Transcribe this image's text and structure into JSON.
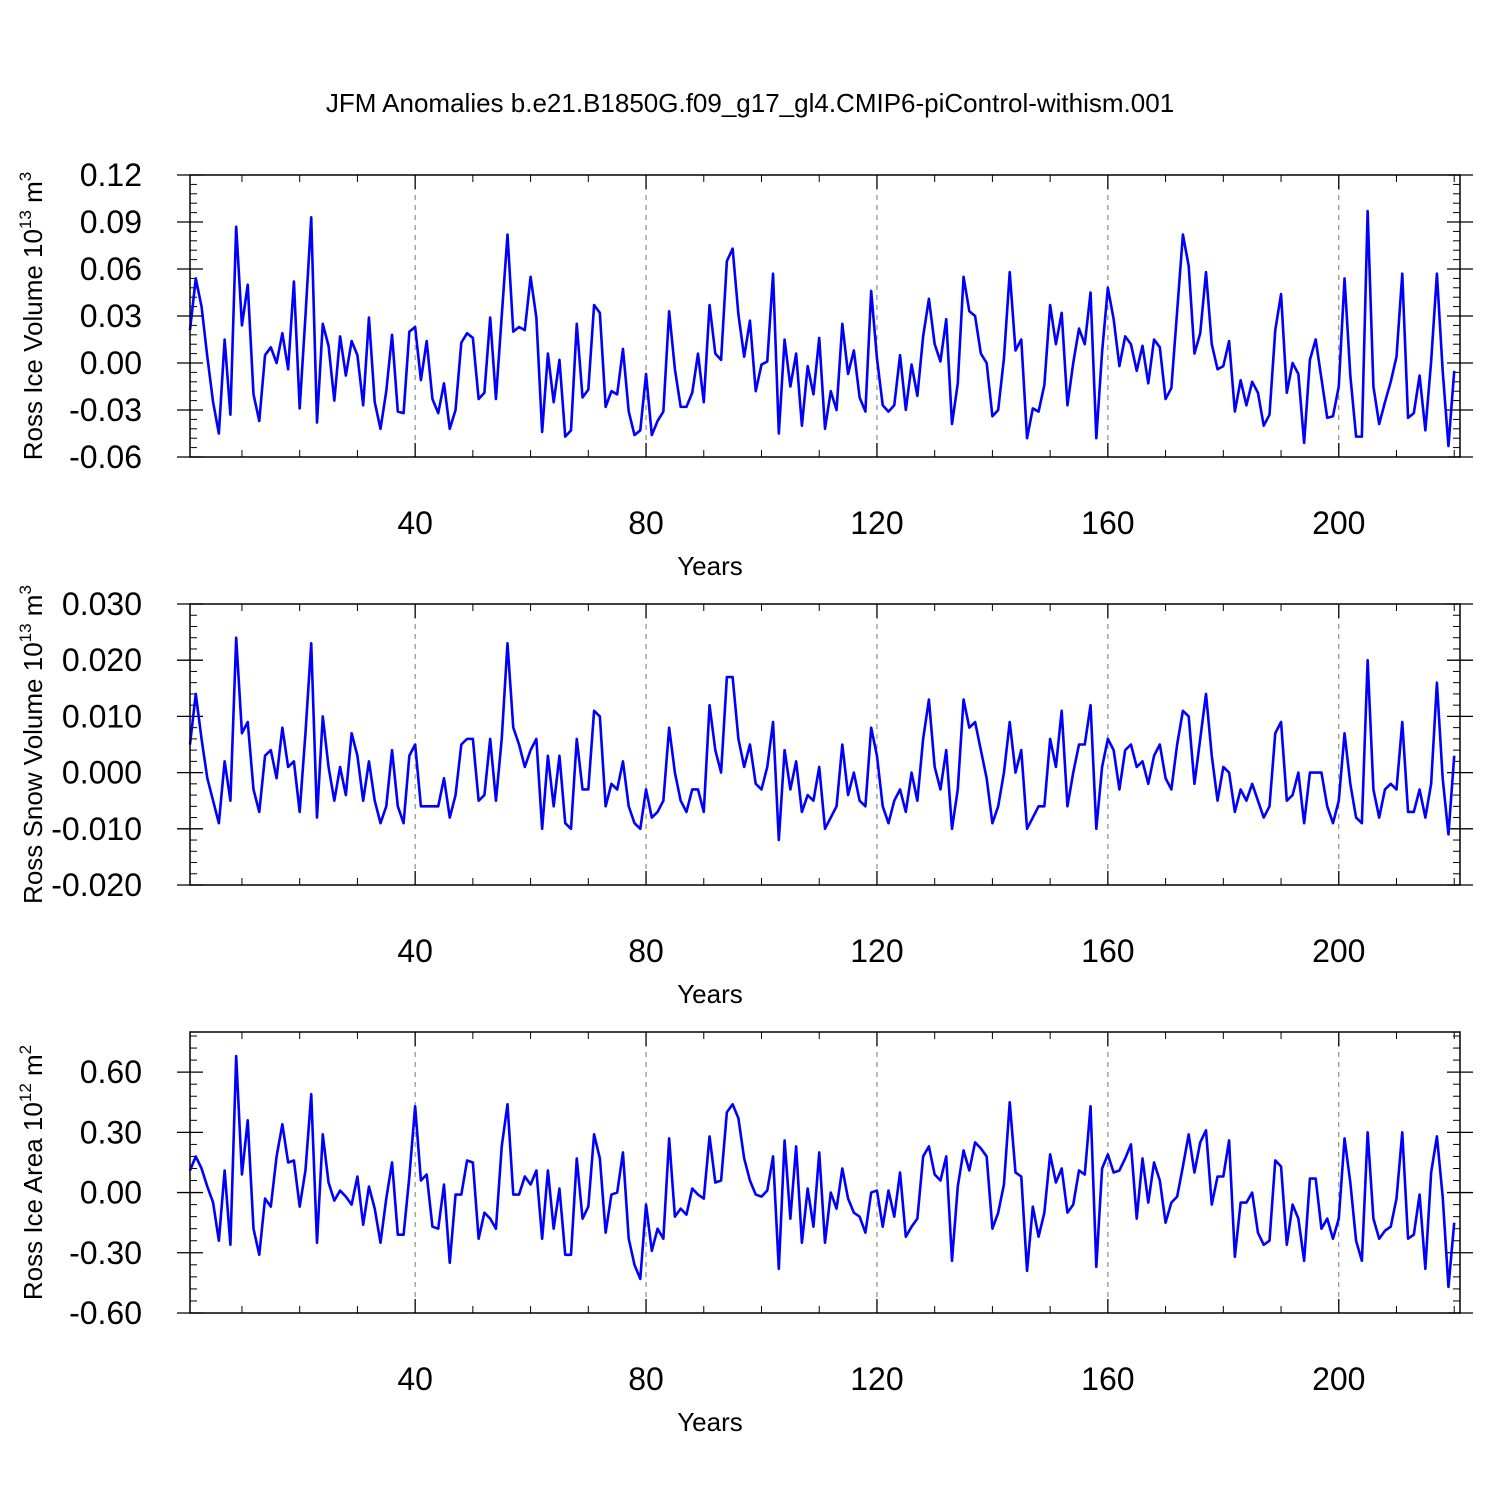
{
  "title": "JFM Anomalies b.e21.B1850G.f09_g17_gl4.CMIP6-piControl-withism.001",
  "line_color": "#0000ff",
  "chart_data": [
    {
      "type": "line",
      "ylabel": "Ross Ice Volume 10",
      "ylabel_sup": "13",
      "ylabel_unit": "m",
      "ylabel_unit_sup": "3",
      "xlabel": "Years",
      "xlim": [
        1,
        221
      ],
      "ylim": [
        -0.06,
        0.12
      ],
      "x_ticks": [
        40,
        80,
        120,
        160,
        200
      ],
      "x_tick_labels": [
        "40",
        "80",
        "120",
        "160",
        "200"
      ],
      "y_ticks": [
        -0.06,
        -0.03,
        0.0,
        0.03,
        0.06,
        0.09,
        0.12
      ],
      "y_tick_labels": [
        "-0.06",
        "-0.03",
        "0.00",
        "0.03",
        "0.06",
        "0.09",
        "0.12"
      ],
      "grid": "dashed vertical at x ticks",
      "series": [
        {
          "values": [
            0.021,
            0.054,
            0.036,
            0.004,
            -0.025,
            -0.045,
            0.015,
            -0.033,
            0.087,
            0.024,
            0.05,
            -0.02,
            -0.037,
            0.005,
            0.01,
            0.0,
            0.019,
            -0.004,
            0.052,
            -0.029,
            0.03,
            0.093,
            -0.038,
            0.025,
            0.011,
            -0.024,
            0.017,
            -0.008,
            0.014,
            0.005,
            -0.027,
            0.029,
            -0.025,
            -0.042,
            -0.018,
            0.018,
            -0.031,
            -0.032,
            0.02,
            0.023,
            -0.011,
            0.014,
            -0.023,
            -0.032,
            -0.013,
            -0.042,
            -0.03,
            0.013,
            0.019,
            0.016,
            -0.023,
            -0.019,
            0.029,
            -0.023,
            0.03,
            0.082,
            0.02,
            0.023,
            0.021,
            0.055,
            0.029,
            -0.044,
            0.006,
            -0.025,
            0.002,
            -0.047,
            -0.043,
            0.025,
            -0.022,
            -0.017,
            0.037,
            0.032,
            -0.028,
            -0.018,
            -0.02,
            0.009,
            -0.031,
            -0.046,
            -0.043,
            -0.007,
            -0.046,
            -0.037,
            -0.031,
            0.033,
            -0.004,
            -0.028,
            -0.028,
            -0.019,
            0.006,
            -0.025,
            0.037,
            0.006,
            0.002,
            0.065,
            0.073,
            0.031,
            0.004,
            0.027,
            -0.018,
            -0.001,
            0.001,
            0.057,
            -0.045,
            0.015,
            -0.015,
            0.006,
            -0.04,
            -0.002,
            -0.02,
            0.016,
            -0.042,
            -0.018,
            -0.03,
            0.025,
            -0.007,
            0.008,
            -0.022,
            -0.031,
            0.046,
            0.003,
            -0.027,
            -0.031,
            -0.027,
            0.005,
            -0.03,
            -0.001,
            -0.021,
            0.017,
            0.041,
            0.012,
            0.001,
            0.028,
            -0.039,
            -0.013,
            0.055,
            0.033,
            0.03,
            0.006,
            0.0,
            -0.034,
            -0.03,
            0.003,
            0.058,
            0.008,
            0.015,
            -0.048,
            -0.029,
            -0.031,
            -0.014,
            0.037,
            0.012,
            0.032,
            -0.027,
            0.0,
            0.022,
            0.012,
            0.045,
            -0.048,
            0.007,
            0.048,
            0.028,
            -0.002,
            0.017,
            0.012,
            -0.005,
            0.011,
            -0.013,
            0.015,
            0.01,
            -0.023,
            -0.016,
            0.033,
            0.082,
            0.062,
            0.006,
            0.019,
            0.058,
            0.012,
            -0.004,
            -0.002,
            0.014,
            -0.031,
            -0.011,
            -0.027,
            -0.012,
            -0.019,
            -0.04,
            -0.033,
            0.021,
            0.044,
            -0.019,
            0.0,
            -0.007,
            -0.051,
            0.002,
            0.015,
            -0.01,
            -0.035,
            -0.034,
            -0.015,
            0.054,
            -0.008,
            -0.047,
            -0.047,
            0.097,
            -0.015,
            -0.039,
            -0.025,
            -0.012,
            0.004,
            0.057,
            -0.035,
            -0.032,
            -0.008,
            -0.043,
            0.001,
            0.057,
            -0.005,
            -0.053,
            -0.005
          ]
        }
      ]
    },
    {
      "type": "line",
      "ylabel": "Ross Snow Volume 10",
      "ylabel_sup": "13",
      "ylabel_unit": "m",
      "ylabel_unit_sup": "3",
      "xlabel": "Years",
      "xlim": [
        1,
        221
      ],
      "ylim": [
        -0.02,
        0.03
      ],
      "x_ticks": [
        40,
        80,
        120,
        160,
        200
      ],
      "x_tick_labels": [
        "40",
        "80",
        "120",
        "160",
        "200"
      ],
      "y_ticks": [
        -0.02,
        -0.01,
        0.0,
        0.01,
        0.02,
        0.03
      ],
      "y_tick_labels": [
        "-0.020",
        "-0.010",
        "0.000",
        "0.010",
        "0.020",
        "0.030"
      ],
      "grid": "dashed vertical at x ticks",
      "series": [
        {
          "values": [
            0.005,
            0.014,
            0.006,
            -0.001,
            -0.005,
            -0.009,
            0.002,
            -0.005,
            0.024,
            0.007,
            0.009,
            -0.003,
            -0.007,
            0.003,
            0.004,
            -0.001,
            0.008,
            0.001,
            0.002,
            -0.007,
            0.007,
            0.023,
            -0.008,
            0.01,
            0.001,
            -0.005,
            0.001,
            -0.004,
            0.007,
            0.003,
            -0.005,
            0.002,
            -0.005,
            -0.009,
            -0.006,
            0.004,
            -0.006,
            -0.009,
            0.003,
            0.005,
            -0.006,
            -0.006,
            -0.006,
            -0.006,
            -0.001,
            -0.008,
            -0.004,
            0.005,
            0.006,
            0.006,
            -0.005,
            -0.004,
            0.006,
            -0.005,
            0.006,
            0.023,
            0.008,
            0.005,
            0.001,
            0.004,
            0.006,
            -0.01,
            0.003,
            -0.006,
            0.003,
            -0.009,
            -0.01,
            0.006,
            -0.003,
            -0.003,
            0.011,
            0.01,
            -0.006,
            -0.002,
            -0.003,
            0.002,
            -0.006,
            -0.009,
            -0.01,
            -0.003,
            -0.008,
            -0.007,
            -0.005,
            0.008,
            0.0,
            -0.005,
            -0.007,
            -0.003,
            -0.003,
            -0.007,
            0.012,
            0.004,
            0.0,
            0.017,
            0.017,
            0.006,
            0.001,
            0.005,
            -0.002,
            -0.003,
            0.001,
            0.009,
            -0.012,
            0.004,
            -0.003,
            0.002,
            -0.007,
            -0.004,
            -0.005,
            0.001,
            -0.01,
            -0.008,
            -0.006,
            0.005,
            -0.004,
            0.0,
            -0.005,
            -0.006,
            0.008,
            0.003,
            -0.006,
            -0.009,
            -0.005,
            -0.003,
            -0.007,
            0.0,
            -0.005,
            0.006,
            0.013,
            0.001,
            -0.003,
            0.004,
            -0.01,
            -0.003,
            0.013,
            0.008,
            0.009,
            0.004,
            -0.001,
            -0.009,
            -0.006,
            0.0,
            0.009,
            0.0,
            0.004,
            -0.01,
            -0.008,
            -0.006,
            -0.006,
            0.006,
            0.001,
            0.011,
            -0.006,
            0.0,
            0.005,
            0.005,
            0.012,
            -0.01,
            0.001,
            0.006,
            0.004,
            -0.003,
            0.004,
            0.005,
            0.001,
            0.002,
            -0.002,
            0.003,
            0.005,
            -0.001,
            -0.003,
            0.005,
            0.011,
            0.01,
            -0.002,
            0.006,
            0.014,
            0.003,
            -0.005,
            0.001,
            0.0,
            -0.007,
            -0.003,
            -0.005,
            -0.002,
            -0.005,
            -0.008,
            -0.006,
            0.007,
            0.009,
            -0.005,
            -0.004,
            0.0,
            -0.009,
            0.0,
            0.0,
            0.0,
            -0.006,
            -0.009,
            -0.005,
            0.007,
            -0.002,
            -0.008,
            -0.009,
            0.02,
            -0.003,
            -0.008,
            -0.003,
            -0.002,
            -0.003,
            0.009,
            -0.007,
            -0.007,
            -0.003,
            -0.008,
            -0.002,
            0.016,
            -0.001,
            -0.011,
            0.003
          ]
        }
      ]
    },
    {
      "type": "line",
      "ylabel": "Ross Ice Area 10",
      "ylabel_sup": "12",
      "ylabel_unit": "m",
      "ylabel_unit_sup": "2",
      "xlabel": "Years",
      "xlim": [
        1,
        221
      ],
      "ylim": [
        -0.6,
        0.8
      ],
      "x_ticks": [
        40,
        80,
        120,
        160,
        200
      ],
      "x_tick_labels": [
        "40",
        "80",
        "120",
        "160",
        "200"
      ],
      "y_ticks": [
        -0.6,
        -0.3,
        0.0,
        0.3,
        0.6
      ],
      "y_tick_labels": [
        "-0.60",
        "-0.30",
        "0.00",
        "0.30",
        "0.60"
      ],
      "grid": "dashed vertical at x ticks",
      "series": [
        {
          "values": [
            0.11,
            0.18,
            0.12,
            0.03,
            -0.05,
            -0.24,
            0.11,
            -0.26,
            0.68,
            0.09,
            0.36,
            -0.18,
            -0.31,
            -0.03,
            -0.07,
            0.18,
            0.34,
            0.15,
            0.16,
            -0.07,
            0.11,
            0.49,
            -0.25,
            0.29,
            0.05,
            -0.04,
            0.01,
            -0.02,
            -0.06,
            0.08,
            -0.16,
            0.03,
            -0.08,
            -0.25,
            -0.03,
            0.15,
            -0.21,
            -0.21,
            0.08,
            0.43,
            0.06,
            0.09,
            -0.17,
            -0.18,
            0.04,
            -0.35,
            -0.01,
            -0.01,
            0.16,
            0.15,
            -0.23,
            -0.1,
            -0.13,
            -0.18,
            0.23,
            0.44,
            -0.01,
            -0.01,
            0.08,
            0.04,
            0.11,
            -0.23,
            0.11,
            -0.18,
            0.02,
            -0.31,
            -0.31,
            0.17,
            -0.13,
            -0.07,
            0.29,
            0.17,
            -0.2,
            -0.01,
            0.0,
            0.2,
            -0.23,
            -0.36,
            -0.43,
            -0.06,
            -0.29,
            -0.18,
            -0.23,
            0.27,
            -0.12,
            -0.08,
            -0.11,
            0.02,
            -0.01,
            -0.03,
            0.28,
            0.05,
            0.06,
            0.4,
            0.44,
            0.37,
            0.17,
            0.06,
            -0.01,
            -0.02,
            0.01,
            0.18,
            -0.38,
            0.26,
            -0.13,
            0.23,
            -0.25,
            0.02,
            -0.17,
            0.2,
            -0.25,
            0.0,
            -0.08,
            0.12,
            -0.03,
            -0.1,
            -0.12,
            -0.2,
            0.0,
            0.01,
            -0.17,
            0.01,
            -0.12,
            0.1,
            -0.22,
            -0.17,
            -0.13,
            0.18,
            0.23,
            0.09,
            0.06,
            0.18,
            -0.34,
            0.03,
            0.21,
            0.11,
            0.25,
            0.22,
            0.18,
            -0.18,
            -0.1,
            0.04,
            0.45,
            0.1,
            0.08,
            -0.39,
            -0.07,
            -0.22,
            -0.1,
            0.19,
            0.05,
            0.12,
            -0.1,
            -0.06,
            0.11,
            0.09,
            0.43,
            -0.37,
            0.12,
            0.19,
            0.1,
            0.11,
            0.17,
            0.24,
            -0.13,
            0.17,
            -0.05,
            0.15,
            0.06,
            -0.15,
            -0.05,
            -0.02,
            0.13,
            0.29,
            0.1,
            0.25,
            0.31,
            -0.06,
            0.08,
            0.08,
            0.26,
            -0.32,
            -0.05,
            -0.05,
            0.0,
            -0.2,
            -0.26,
            -0.24,
            0.16,
            0.13,
            -0.26,
            -0.06,
            -0.13,
            -0.34,
            0.07,
            0.07,
            -0.18,
            -0.13,
            -0.23,
            -0.13,
            0.27,
            0.05,
            -0.24,
            -0.34,
            0.3,
            -0.13,
            -0.23,
            -0.19,
            -0.17,
            -0.03,
            0.3,
            -0.23,
            -0.21,
            -0.01,
            -0.38,
            0.1,
            0.28,
            -0.02,
            -0.47,
            -0.15
          ]
        }
      ]
    }
  ]
}
